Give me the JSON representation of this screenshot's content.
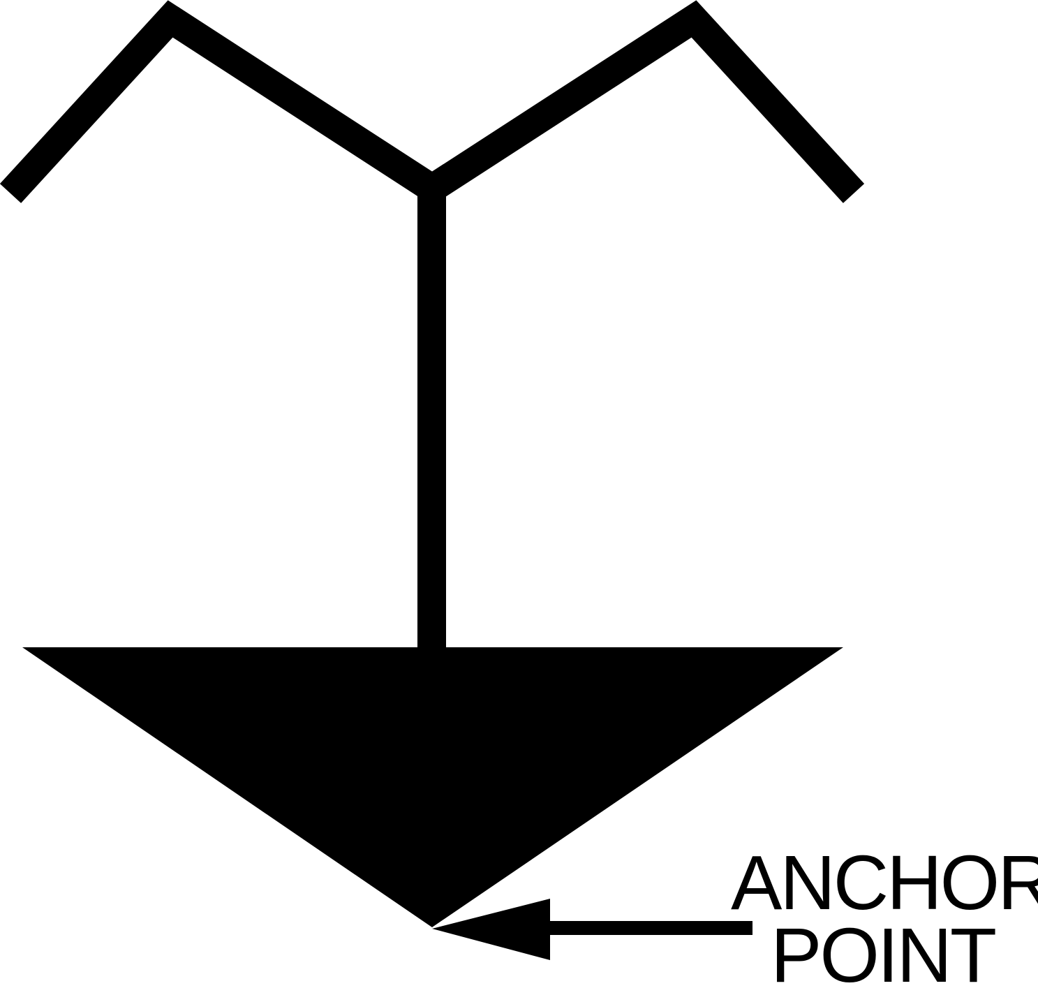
{
  "diagram": {
    "label_line1": "ANCHOR",
    "label_line2": "POINT",
    "colors": {
      "ink": "#000000",
      "background": "#ffffff"
    },
    "icon": "anchor-symbol-icon"
  }
}
